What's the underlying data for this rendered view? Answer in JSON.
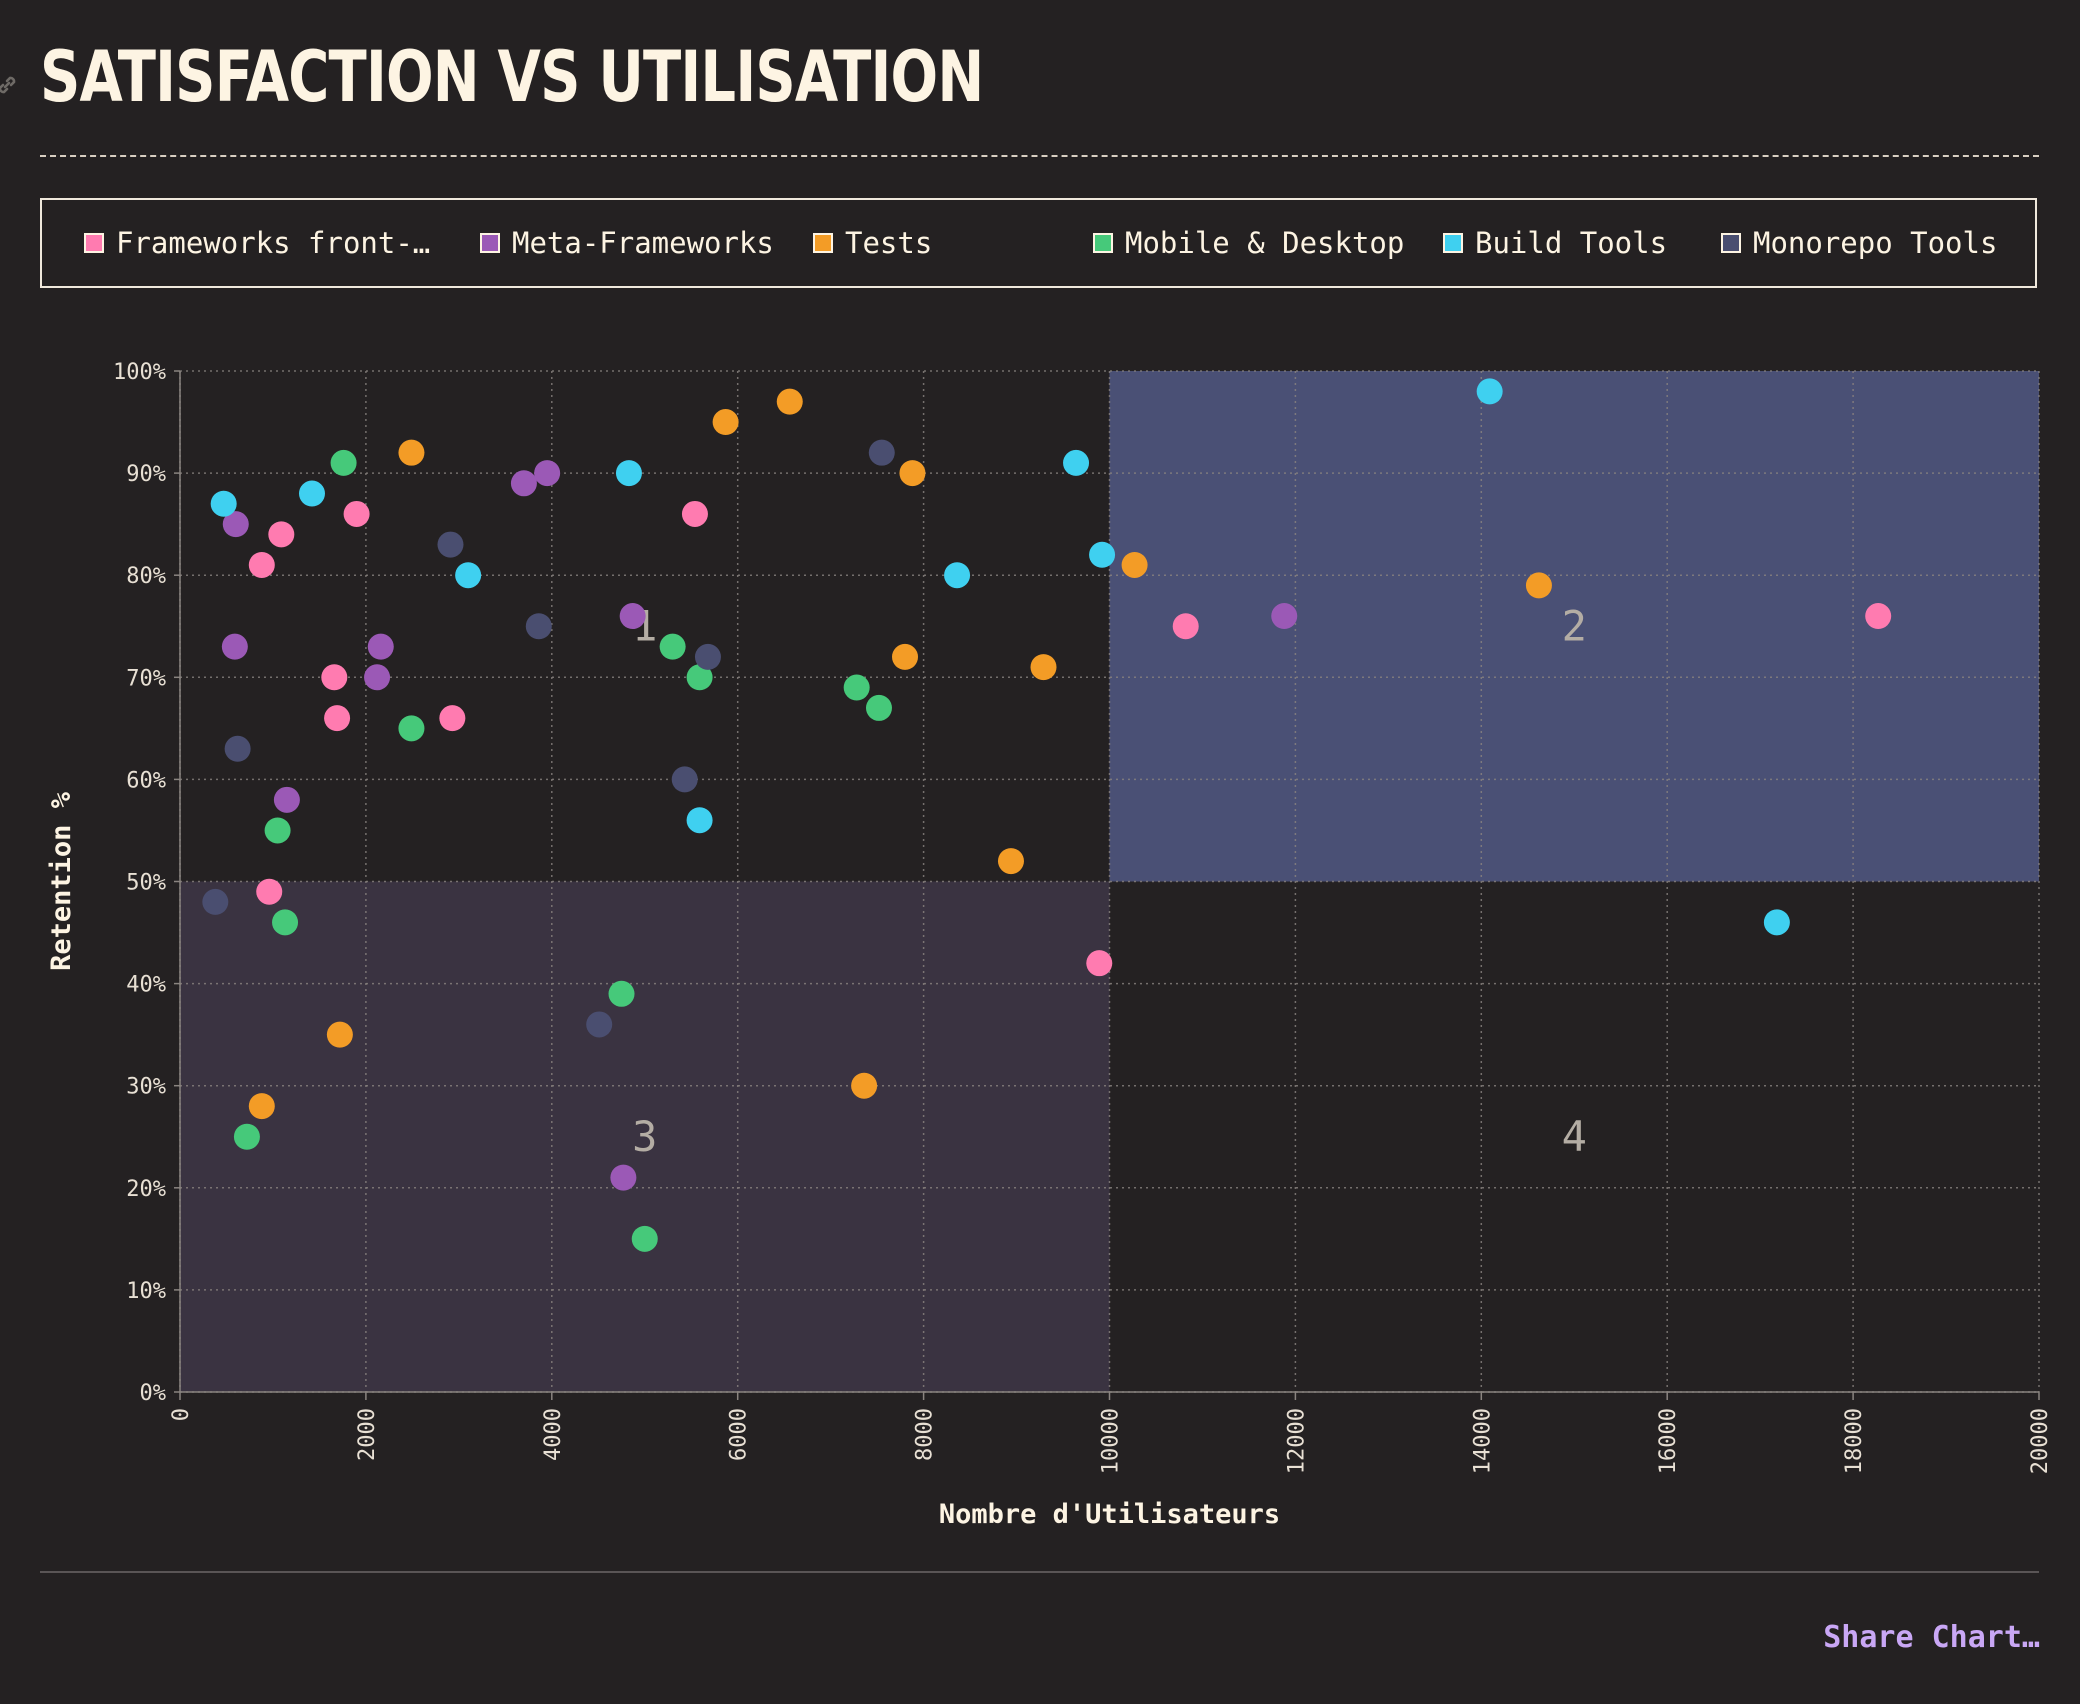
{
  "page": {
    "title": "Satisfaction vs Utilisation",
    "share_label": "Share Chart…"
  },
  "legend": [
    {
      "label": "Frameworks front-…",
      "color": "#ff7bb0"
    },
    {
      "label": "Meta-Frameworks",
      "color": "#9b59b6"
    },
    {
      "label": "Tests",
      "color": "#f39c26"
    },
    {
      "label": "Mobile & Desktop",
      "color": "#46c97a"
    },
    {
      "label": "Build Tools",
      "color": "#3fd0f0"
    },
    {
      "label": "Monorepo Tools",
      "color": "#4a4e70"
    }
  ],
  "chart_data": {
    "type": "scatter",
    "title": "Satisfaction vs Utilisation",
    "xlabel": "Nombre d'Utilisateurs",
    "ylabel": "Retention %",
    "xlim": [
      0,
      20000
    ],
    "ylim": [
      0,
      100
    ],
    "x_ticks": [
      "0",
      "2000",
      "4000",
      "6000",
      "8000",
      "10000",
      "12000",
      "14000",
      "16000",
      "18000",
      "20000"
    ],
    "y_ticks": [
      "0%",
      "10%",
      "20%",
      "30%",
      "40%",
      "50%",
      "60%",
      "70%",
      "80%",
      "90%",
      "100%"
    ],
    "grid": true,
    "quadrants": [
      {
        "label": "1",
        "x": [
          0,
          10000
        ],
        "y": [
          50,
          100
        ],
        "shaded": false
      },
      {
        "label": "2",
        "x": [
          10000,
          20000
        ],
        "y": [
          50,
          100
        ],
        "shaded": true,
        "color": "#4a5075"
      },
      {
        "label": "3",
        "x": [
          0,
          10000
        ],
        "y": [
          0,
          50
        ],
        "shaded": true,
        "color": "#3a3341"
      },
      {
        "label": "4",
        "x": [
          10000,
          20000
        ],
        "y": [
          0,
          50
        ],
        "shaded": false
      }
    ],
    "series": [
      {
        "name": "Frameworks front-…",
        "color": "#ff7bb0",
        "points": [
          [
            880,
            81
          ],
          [
            1090,
            84
          ],
          [
            1900,
            86
          ],
          [
            1660,
            70
          ],
          [
            1690,
            66
          ],
          [
            2930,
            66
          ],
          [
            960,
            49
          ],
          [
            5540,
            86
          ],
          [
            10820,
            75
          ],
          [
            9890,
            42
          ],
          [
            18270,
            76
          ]
        ]
      },
      {
        "name": "Meta-Frameworks",
        "color": "#9b59b6",
        "points": [
          [
            600,
            85
          ],
          [
            590,
            73
          ],
          [
            1150,
            58
          ],
          [
            2160,
            73
          ],
          [
            2120,
            70
          ],
          [
            3700,
            89
          ],
          [
            3950,
            90
          ],
          [
            4870,
            76
          ],
          [
            4770,
            21
          ],
          [
            11880,
            76
          ]
        ]
      },
      {
        "name": "Tests",
        "color": "#f39c26",
        "points": [
          [
            2490,
            92
          ],
          [
            5870,
            95
          ],
          [
            6560,
            97
          ],
          [
            7880,
            90
          ],
          [
            10270,
            81
          ],
          [
            7800,
            72
          ],
          [
            9290,
            71
          ],
          [
            14620,
            79
          ],
          [
            8940,
            52
          ],
          [
            1720,
            35
          ],
          [
            880,
            28
          ],
          [
            7360,
            30
          ]
        ]
      },
      {
        "name": "Mobile & Desktop",
        "color": "#46c97a",
        "points": [
          [
            1760,
            91
          ],
          [
            2490,
            65
          ],
          [
            1050,
            55
          ],
          [
            1130,
            46
          ],
          [
            5300,
            73
          ],
          [
            5590,
            70
          ],
          [
            7280,
            69
          ],
          [
            7520,
            67
          ],
          [
            4750,
            39
          ],
          [
            720,
            25
          ],
          [
            5000,
            15
          ]
        ]
      },
      {
        "name": "Build Tools",
        "color": "#3fd0f0",
        "points": [
          [
            470,
            87
          ],
          [
            1420,
            88
          ],
          [
            3100,
            80
          ],
          [
            4830,
            90
          ],
          [
            8360,
            80
          ],
          [
            9640,
            91
          ],
          [
            9920,
            82
          ],
          [
            5590,
            56
          ],
          [
            14090,
            98
          ],
          [
            17180,
            46
          ]
        ]
      },
      {
        "name": "Monorepo Tools",
        "color": "#4a4e70",
        "points": [
          [
            2910,
            83
          ],
          [
            3860,
            75
          ],
          [
            620,
            63
          ],
          [
            380,
            48
          ],
          [
            5680,
            72
          ],
          [
            5430,
            60
          ],
          [
            7550,
            92
          ],
          [
            4510,
            36
          ]
        ]
      }
    ]
  }
}
